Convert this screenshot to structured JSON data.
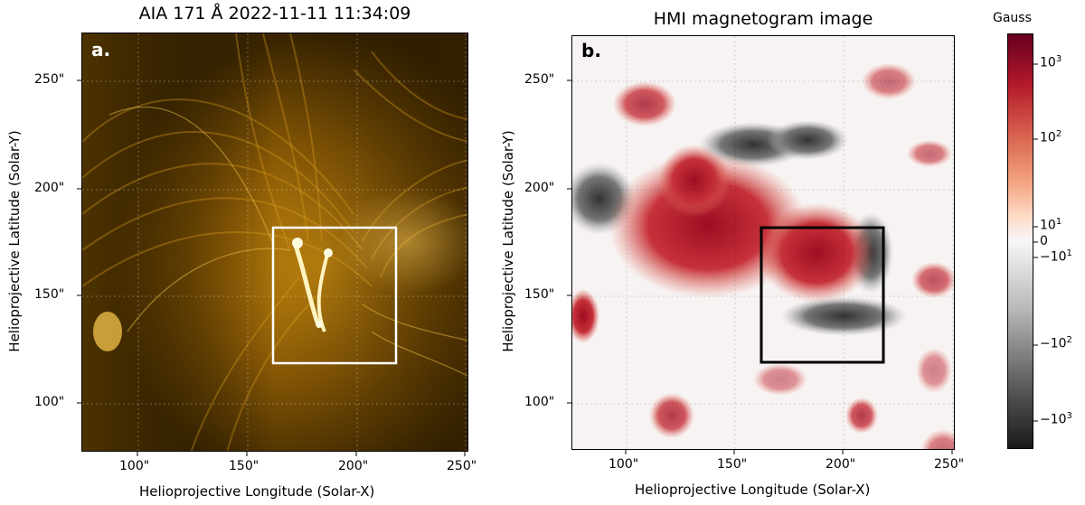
{
  "panel_a": {
    "title": "AIA 171 Å 2022-11-11 11:34:09",
    "letter": "a.",
    "x_ticks": [
      "100\"",
      "150\"",
      "200\"",
      "250\""
    ],
    "y_ticks": [
      "250\"",
      "200\"",
      "150\"",
      "100\""
    ],
    "xlabel": "Helioprojective Longitude (Solar-X)",
    "ylabel": "Helioprojective Latitude (Solar-Y)",
    "colors": {
      "background": "#3a2600",
      "bright": "#ffc440",
      "box": "#ffffff"
    }
  },
  "panel_b": {
    "title": "HMI magnetogram image",
    "letter": "b.",
    "x_ticks": [
      "100\"",
      "150\"",
      "200\"",
      "250\""
    ],
    "y_ticks": [
      "250\"",
      "200\"",
      "150\"",
      "100\""
    ],
    "xlabel": "Helioprojective Longitude (Solar-X)",
    "ylabel": "Helioprojective Latitude (Solar-Y)",
    "colors": {
      "positive": "#b2182b",
      "negative": "#404040",
      "box": "#000000"
    }
  },
  "colorbar": {
    "title": "Gauss",
    "positive_ticks": [
      {
        "base": "10",
        "exp": "3"
      },
      {
        "base": "10",
        "exp": "2"
      },
      {
        "base": "10",
        "exp": "1"
      }
    ],
    "zero_label": "0",
    "negative_ticks": [
      {
        "base": "−10",
        "exp": "1"
      },
      {
        "base": "−10",
        "exp": "2"
      },
      {
        "base": "−10",
        "exp": "3"
      }
    ],
    "colors": {
      "top": "#67001f",
      "mid": "#f7f7f7",
      "bottom": "#1a1a1a"
    }
  }
}
